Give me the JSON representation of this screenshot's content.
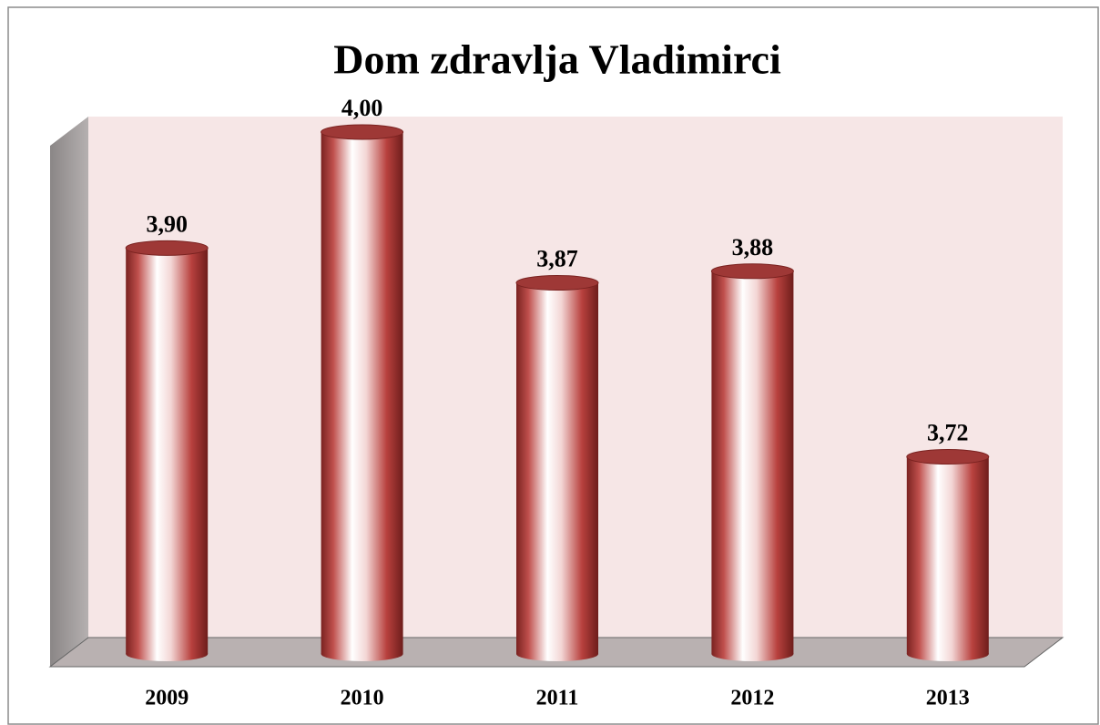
{
  "chart_data": {
    "type": "bar",
    "title": "Dom zdravlja Vladimirci",
    "categories": [
      "2009",
      "2010",
      "2011",
      "2012",
      "2013"
    ],
    "values": [
      3.9,
      4.0,
      3.87,
      3.88,
      3.72
    ],
    "value_labels": [
      "3,90",
      "4,00",
      "3,87",
      "3,88",
      "3,72"
    ],
    "color": "#c0504d",
    "ylim": [
      3.55,
      4.0
    ]
  }
}
